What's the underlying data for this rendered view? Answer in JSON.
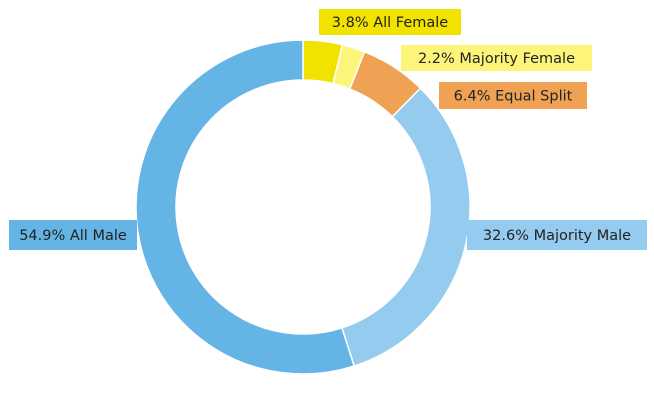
{
  "chart_data": {
    "type": "pie",
    "variant": "donut",
    "title": "",
    "slices": [
      {
        "label": "All Female",
        "value": 3.8,
        "text": "3.8% All Female",
        "color": "#f2e200"
      },
      {
        "label": "Majority Female",
        "value": 2.2,
        "text": "2.2% Majority Female",
        "color": "#fdf57a"
      },
      {
        "label": "Equal Split",
        "value": 6.4,
        "text": "6.4% Equal Split",
        "color": "#f0a254"
      },
      {
        "label": "Majority Male",
        "value": 32.6,
        "text": "32.6% Majority Male",
        "color": "#95cbef"
      },
      {
        "label": "All Male",
        "value": 54.9,
        "text": "54.9% All Male",
        "color": "#64b5e5"
      }
    ],
    "start": "top",
    "direction": "clockwise",
    "labels": "outside with colored boxes"
  }
}
